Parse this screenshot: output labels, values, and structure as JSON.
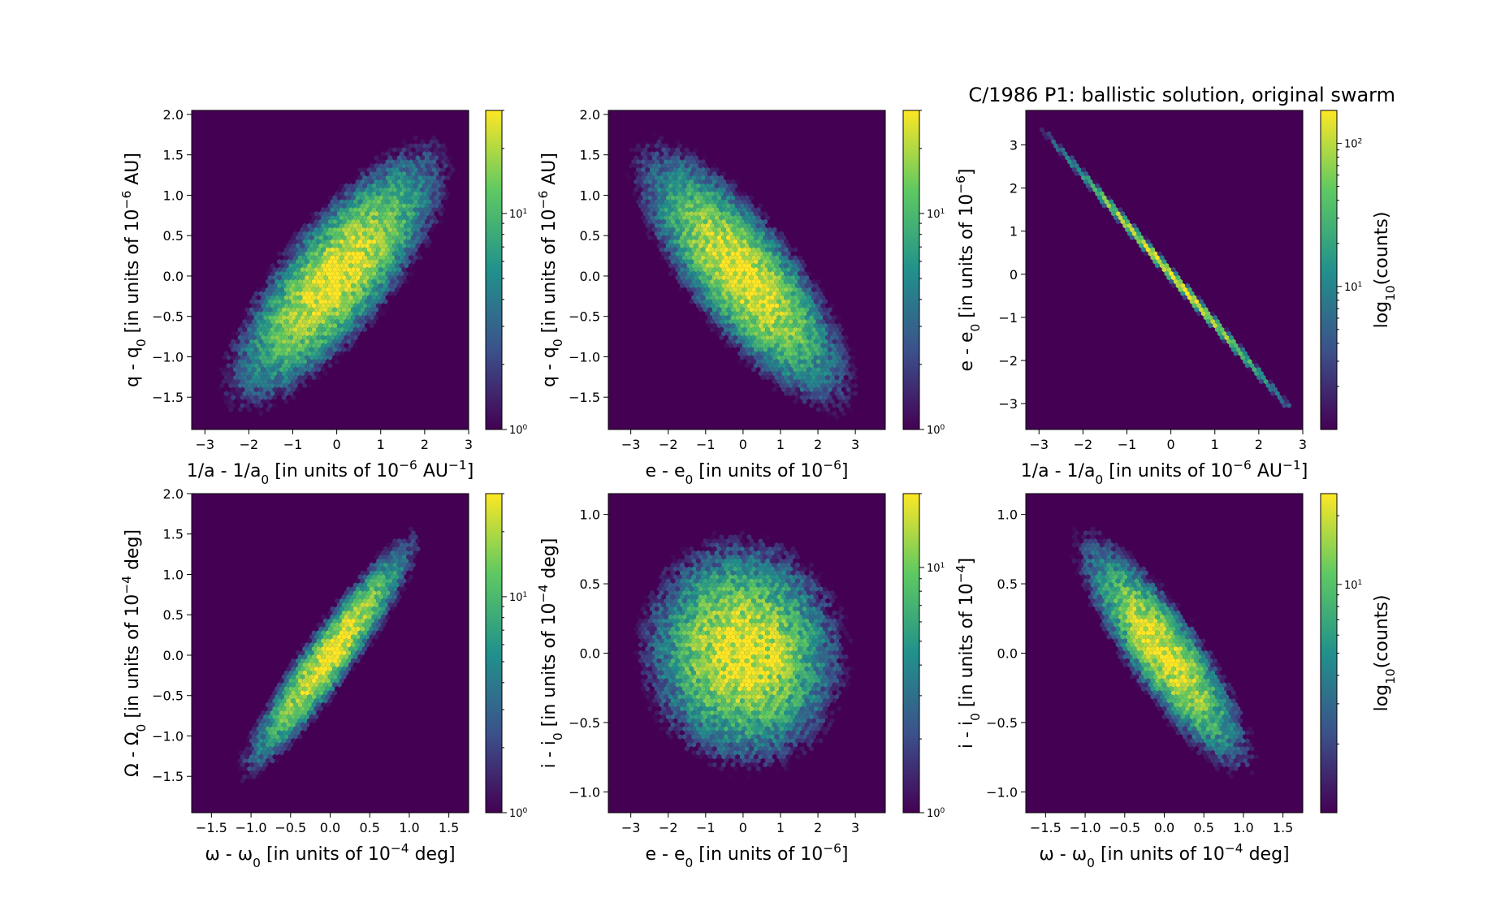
{
  "figure": {
    "title": "C/1986 P1:  ballistic solution, original swarm",
    "colormap_stops": [
      "#440154",
      "#3b528b",
      "#21918c",
      "#5ec962",
      "#fde725"
    ]
  },
  "chart_data": [
    {
      "type": "heatmap",
      "subtype": "hexbin",
      "xlabel": "1/a - 1/a0 [in units of 10^-6 AU^-1]",
      "ylabel": "q - q0 [in units of 10^-6 AU]",
      "xlim": [
        -3.3,
        3.0
      ],
      "ylim": [
        -1.9,
        2.05
      ],
      "xticks": [
        "-3",
        "-2",
        "-1",
        "0",
        "1",
        "2",
        "3"
      ],
      "yticks": [
        "-1.5",
        "-1.0",
        "-0.5",
        "0.0",
        "0.5",
        "1.0",
        "1.5",
        "2.0"
      ],
      "colorbar": {
        "scale": "log",
        "ticks": [
          "10^0",
          "10^1"
        ],
        "range": [
          1,
          30
        ],
        "label": ""
      },
      "distribution": {
        "sx": 1.0,
        "sy": 0.65,
        "corr": 0.78
      },
      "peak_count": 30
    },
    {
      "type": "heatmap",
      "subtype": "hexbin",
      "xlabel": "e - e0 [in units of 10^-6]",
      "ylabel": "q - q0 [in units of 10^-6 AU]",
      "xlim": [
        -3.6,
        3.8
      ],
      "ylim": [
        -1.9,
        2.05
      ],
      "xticks": [
        "-3",
        "-2",
        "-1",
        "0",
        "1",
        "2",
        "3"
      ],
      "yticks": [
        "-1.5",
        "-1.0",
        "-0.5",
        "0.0",
        "0.5",
        "1.0",
        "1.5",
        "2.0"
      ],
      "colorbar": {
        "scale": "log",
        "ticks": [
          "10^0",
          "10^1"
        ],
        "range": [
          1,
          30
        ],
        "label": ""
      },
      "distribution": {
        "sx": 1.15,
        "sy": 0.65,
        "corr": -0.78
      },
      "peak_count": 30
    },
    {
      "type": "heatmap",
      "subtype": "hexbin",
      "xlabel": "1/a - 1/a0 [in units of 10^-6 AU^-1]",
      "ylabel": "e - e0 [in units of 10^-6]",
      "xlim": [
        -3.3,
        3.0
      ],
      "ylim": [
        -3.6,
        3.8
      ],
      "xticks": [
        "-3",
        "-2",
        "-1",
        "0",
        "1",
        "2",
        "3"
      ],
      "yticks": [
        "-3",
        "-2",
        "-1",
        "0",
        "1",
        "2",
        "3"
      ],
      "colorbar": {
        "scale": "log",
        "ticks": [
          "10^1",
          "10^2"
        ],
        "range": [
          1,
          170
        ],
        "label": "log10(counts)"
      },
      "distribution": {
        "line": {
          "slope": -1.15,
          "x_range": [
            -2.95,
            2.7
          ]
        },
        "sx": 1.0
      },
      "peak_count": 170
    },
    {
      "type": "heatmap",
      "subtype": "hexbin",
      "xlabel": "ω - ω0 [in units of 10^-4 deg]",
      "ylabel": "Ω - Ω0 [in units of 10^-4 deg]",
      "xlim": [
        -1.75,
        1.75
      ],
      "ylim": [
        -1.95,
        2.0
      ],
      "xticks": [
        "-1.5",
        "-1.0",
        "-0.5",
        "0.0",
        "0.5",
        "1.0",
        "1.5"
      ],
      "yticks": [
        "-1.5",
        "-1.0",
        "-0.5",
        "0.0",
        "0.5",
        "1.0",
        "1.5",
        "2.0"
      ],
      "colorbar": {
        "scale": "log",
        "ticks": [
          "10^0",
          "10^1"
        ],
        "range": [
          1,
          30
        ],
        "label": ""
      },
      "distribution": {
        "sx": 0.45,
        "sy": 0.6,
        "corr": 0.93
      },
      "peak_count": 30
    },
    {
      "type": "heatmap",
      "subtype": "hexbin",
      "xlabel": "e - e0 [in units of 10^-6]",
      "ylabel": "i - i0 [in units of 10^-4 deg]",
      "xlim": [
        -3.6,
        3.8
      ],
      "ylim": [
        -1.15,
        1.15
      ],
      "xticks": [
        "-3",
        "-2",
        "-1",
        "0",
        "1",
        "2",
        "3"
      ],
      "yticks": [
        "-1.0",
        "-0.5",
        "0.0",
        "0.5",
        "1.0"
      ],
      "colorbar": {
        "scale": "log",
        "ticks": [
          "10^0",
          "10^1"
        ],
        "range": [
          1,
          20
        ],
        "label": ""
      },
      "distribution": {
        "sx": 1.15,
        "sy": 0.35,
        "corr": -0.05
      },
      "peak_count": 20
    },
    {
      "type": "heatmap",
      "subtype": "hexbin",
      "xlabel": "ω - ω0 [in units of 10^-4 deg]",
      "ylabel": "i - i0 [in units of 10^-4]",
      "xlim": [
        -1.75,
        1.75
      ],
      "ylim": [
        -1.15,
        1.15
      ],
      "xticks": [
        "-1.5",
        "-1.0",
        "-0.5",
        "0.0",
        "0.5",
        "1.0",
        "1.5"
      ],
      "yticks": [
        "-1.0",
        "-0.5",
        "0.0",
        "0.5",
        "1.0"
      ],
      "colorbar": {
        "scale": "log",
        "ticks": [
          "10^1"
        ],
        "range": [
          1,
          25
        ],
        "label": "log10(counts)"
      },
      "distribution": {
        "sx": 0.45,
        "sy": 0.35,
        "corr": -0.85
      },
      "peak_count": 25
    }
  ]
}
